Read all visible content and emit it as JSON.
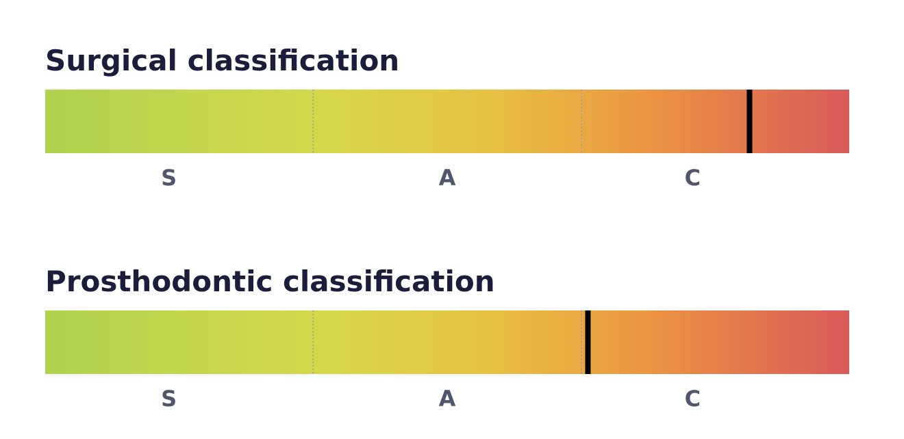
{
  "gauges": [
    {
      "title": "Surgical classification",
      "labels": [
        "S",
        "A",
        "C"
      ],
      "marker": 0.876
    },
    {
      "title": "Prosthodontic classification",
      "labels": [
        "S",
        "A",
        "C"
      ],
      "marker": 0.675
    }
  ]
}
